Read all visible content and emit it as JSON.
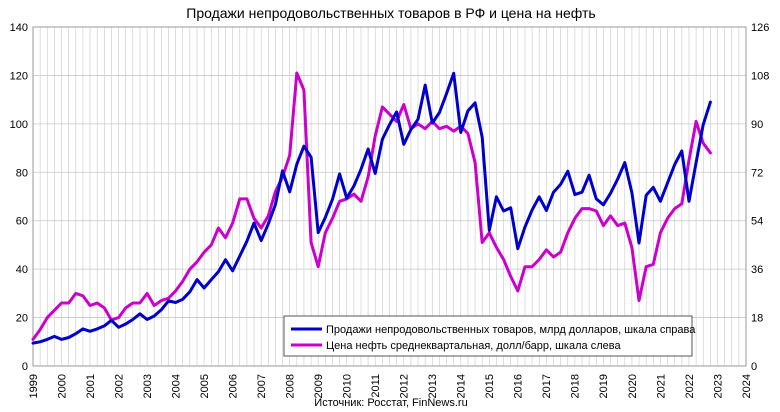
{
  "chart_data": {
    "type": "line",
    "title": "Продажи непродовольственных товаров в РФ и цена на нефть",
    "source": "Источник: Росстат, FinNews.ru",
    "xlim": [
      1999,
      2024
    ],
    "x_ticks": [
      "1999",
      "2000",
      "2001",
      "2002",
      "2003",
      "2004",
      "2005",
      "2006",
      "2007",
      "2008",
      "2009",
      "2010",
      "2011",
      "2012",
      "2013",
      "2014",
      "2015",
      "2016",
      "2017",
      "2018",
      "2019",
      "2020",
      "2021",
      "2022",
      "2023",
      "2024"
    ],
    "y_left": {
      "lim": [
        0,
        140
      ],
      "ticks": [
        "0",
        "20",
        "40",
        "60",
        "80",
        "100",
        "120",
        "140"
      ]
    },
    "y_right": {
      "lim": [
        0,
        126
      ],
      "ticks": [
        "0",
        "18",
        "36",
        "54",
        "72",
        "90",
        "108",
        "126"
      ]
    },
    "grid": true,
    "legend_position": "bottom-right",
    "series": [
      {
        "name": "Продажи непродовольственных товаров, млрд долларов, шкала справа",
        "color": "#0000cc",
        "axis": "right",
        "x": [
          1999.0,
          1999.25,
          1999.5,
          1999.75,
          2000.0,
          2000.25,
          2000.5,
          2000.75,
          2001.0,
          2001.25,
          2001.5,
          2001.75,
          2002.0,
          2002.25,
          2002.5,
          2002.75,
          2003.0,
          2003.25,
          2003.5,
          2003.75,
          2004.0,
          2004.25,
          2004.5,
          2004.75,
          2005.0,
          2005.25,
          2005.5,
          2005.75,
          2006.0,
          2006.25,
          2006.5,
          2006.75,
          2007.0,
          2007.25,
          2007.5,
          2007.75,
          2008.0,
          2008.25,
          2008.5,
          2008.75,
          2009.0,
          2009.25,
          2009.5,
          2009.75,
          2010.0,
          2010.25,
          2010.5,
          2010.75,
          2011.0,
          2011.25,
          2011.5,
          2011.75,
          2012.0,
          2012.25,
          2012.5,
          2012.75,
          2013.0,
          2013.25,
          2013.5,
          2013.75,
          2014.0,
          2014.25,
          2014.5,
          2014.75,
          2015.0,
          2015.25,
          2015.5,
          2015.75,
          2016.0,
          2016.25,
          2016.5,
          2016.75,
          2017.0,
          2017.25,
          2017.5,
          2017.75,
          2018.0,
          2018.25,
          2018.5,
          2018.75,
          2019.0,
          2019.25,
          2019.5,
          2019.75,
          2020.0,
          2020.25,
          2020.5,
          2020.75,
          2021.0,
          2021.25,
          2021.5,
          2021.75,
          2022.0,
          2022.25,
          2022.5,
          2022.75
        ],
        "y": [
          8.5,
          9.0,
          9.9,
          11.0,
          9.9,
          10.6,
          12.0,
          13.8,
          12.9,
          13.8,
          14.9,
          17.0,
          14.4,
          15.6,
          17.3,
          19.4,
          17.3,
          18.6,
          20.9,
          24.2,
          23.6,
          24.8,
          27.6,
          32.1,
          29.0,
          32.1,
          35.0,
          39.5,
          35.4,
          40.9,
          46.4,
          53.1,
          46.6,
          52.8,
          60.0,
          72.5,
          64.7,
          75.0,
          81.7,
          77.6,
          49.6,
          55.2,
          62.0,
          71.4,
          62.4,
          66.9,
          73.1,
          80.6,
          71.6,
          84.3,
          89.7,
          94.4,
          82.4,
          87.9,
          91.7,
          104.4,
          90.3,
          94.2,
          101.2,
          108.8,
          86.8,
          94.8,
          97.8,
          85.0,
          50.4,
          62.9,
          57.6,
          58.8,
          43.6,
          51.7,
          58.0,
          62.9,
          57.8,
          64.6,
          67.5,
          72.4,
          63.7,
          64.6,
          70.9,
          62.1,
          59.9,
          64.2,
          69.5,
          75.6,
          64.4,
          45.7,
          63.5,
          66.4,
          61.2,
          68.1,
          74.9,
          79.9,
          61.2,
          75.6,
          89.7,
          98.1
        ]
      },
      {
        "name": "Цена нефть среднеквартальная, долл/барр, шкала слева",
        "color": "#cc00cc",
        "axis": "left",
        "x": [
          1999.0,
          1999.25,
          1999.5,
          1999.75,
          2000.0,
          2000.25,
          2000.5,
          2000.75,
          2001.0,
          2001.25,
          2001.5,
          2001.75,
          2002.0,
          2002.25,
          2002.5,
          2002.75,
          2003.0,
          2003.25,
          2003.5,
          2003.75,
          2004.0,
          2004.25,
          2004.5,
          2004.75,
          2005.0,
          2005.25,
          2005.5,
          2005.75,
          2006.0,
          2006.25,
          2006.5,
          2006.75,
          2007.0,
          2007.25,
          2007.5,
          2007.75,
          2008.0,
          2008.25,
          2008.5,
          2008.75,
          2009.0,
          2009.25,
          2009.5,
          2009.75,
          2010.0,
          2010.25,
          2010.5,
          2010.75,
          2011.0,
          2011.25,
          2011.5,
          2011.75,
          2012.0,
          2012.25,
          2012.5,
          2012.75,
          2013.0,
          2013.25,
          2013.5,
          2013.75,
          2014.0,
          2014.25,
          2014.5,
          2014.75,
          2015.0,
          2015.25,
          2015.5,
          2015.75,
          2016.0,
          2016.25,
          2016.5,
          2016.75,
          2017.0,
          2017.25,
          2017.5,
          2017.75,
          2018.0,
          2018.25,
          2018.5,
          2018.75,
          2019.0,
          2019.25,
          2019.5,
          2019.75,
          2020.0,
          2020.25,
          2020.5,
          2020.75,
          2021.0,
          2021.25,
          2021.5,
          2021.75,
          2022.0,
          2022.25,
          2022.5,
          2022.75
        ],
        "y": [
          11,
          15,
          20,
          23,
          26,
          26,
          30,
          29,
          25,
          26,
          24,
          19,
          20,
          24,
          26,
          26,
          30,
          25,
          27,
          28,
          31,
          35,
          40,
          43,
          47,
          50,
          57,
          53,
          59,
          69,
          69,
          61,
          57,
          62,
          72,
          78,
          87,
          121,
          114,
          51,
          41,
          55,
          61,
          68,
          69,
          71,
          68,
          78,
          95,
          107,
          104,
          101,
          108,
          98,
          100,
          98,
          101,
          98,
          99,
          97,
          99,
          96,
          84,
          51,
          55,
          49,
          44,
          37,
          31,
          41,
          41,
          44,
          48,
          45,
          47,
          55,
          61,
          65,
          65,
          64,
          58,
          62,
          58,
          59,
          49,
          27,
          41,
          42,
          55,
          61,
          65,
          67,
          85,
          101,
          92,
          88
        ]
      }
    ]
  }
}
